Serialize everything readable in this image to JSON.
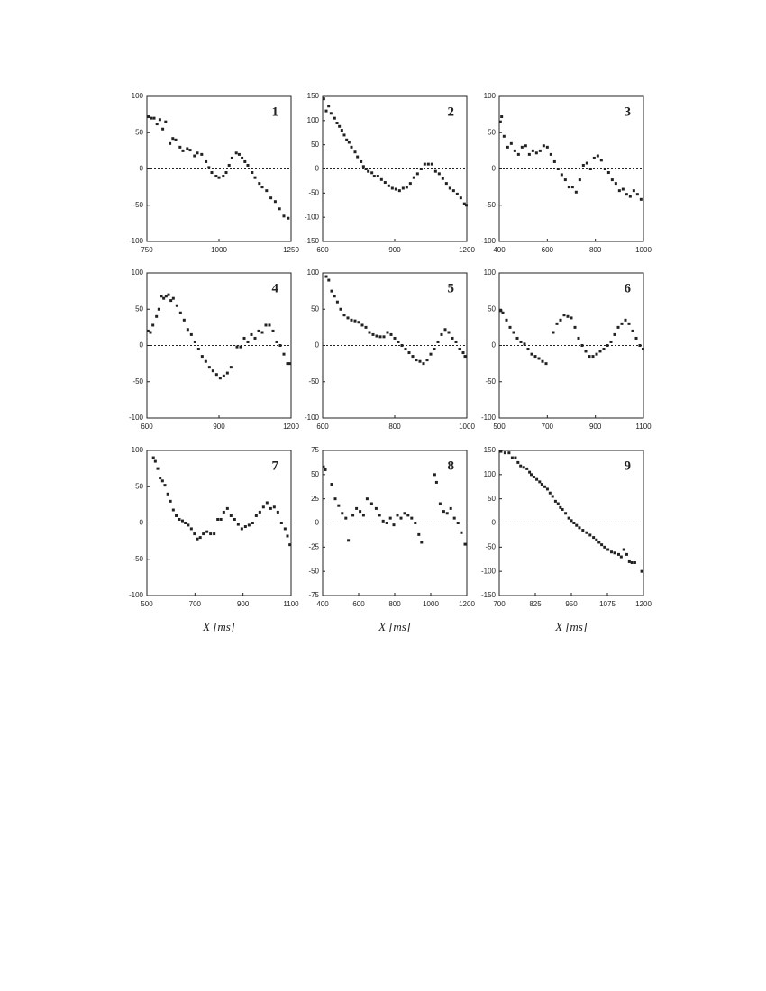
{
  "chart_data": [
    {
      "type": "scatter",
      "label": "1",
      "color": "#222222",
      "zero_line": true,
      "xlim": [
        750,
        1250
      ],
      "xticks": [
        750,
        1000,
        1250
      ],
      "ylim": [
        -100,
        100
      ],
      "yticks": [
        -100,
        -50,
        0,
        50,
        100
      ],
      "x": [
        755,
        765,
        775,
        785,
        795,
        805,
        815,
        830,
        840,
        850,
        865,
        875,
        890,
        900,
        915,
        925,
        940,
        955,
        965,
        975,
        990,
        1000,
        1015,
        1025,
        1035,
        1045,
        1060,
        1070,
        1080,
        1090,
        1100,
        1115,
        1125,
        1140,
        1150,
        1165,
        1180,
        1195,
        1210,
        1225,
        1240
      ],
      "values": [
        72,
        70,
        70,
        62,
        68,
        55,
        65,
        35,
        42,
        40,
        30,
        25,
        28,
        26,
        18,
        22,
        20,
        10,
        2,
        -5,
        -10,
        -12,
        -10,
        -5,
        5,
        15,
        22,
        20,
        15,
        10,
        5,
        -5,
        -12,
        -20,
        -25,
        -30,
        -40,
        -45,
        -55,
        -65,
        -68
      ]
    },
    {
      "type": "scatter",
      "label": "2",
      "color": "#222222",
      "zero_line": true,
      "xlim": [
        600,
        1200
      ],
      "xticks": [
        600,
        900,
        1200
      ],
      "ylim": [
        -150,
        150
      ],
      "yticks": [
        -150,
        -100,
        -50,
        0,
        50,
        100,
        150
      ],
      "x": [
        605,
        615,
        625,
        635,
        650,
        660,
        670,
        680,
        690,
        700,
        710,
        720,
        735,
        745,
        760,
        770,
        780,
        790,
        805,
        815,
        830,
        845,
        860,
        875,
        890,
        905,
        920,
        935,
        950,
        965,
        980,
        995,
        1010,
        1025,
        1040,
        1055,
        1070,
        1085,
        1100,
        1115,
        1130,
        1145,
        1160,
        1175,
        1190,
        1198
      ],
      "values": [
        145,
        120,
        130,
        115,
        105,
        95,
        88,
        80,
        70,
        60,
        55,
        45,
        35,
        25,
        15,
        5,
        0,
        -5,
        -8,
        -15,
        -15,
        -22,
        -28,
        -35,
        -40,
        -42,
        -45,
        -40,
        -38,
        -30,
        -18,
        -10,
        0,
        10,
        10,
        10,
        -5,
        -10,
        -20,
        -30,
        -40,
        -45,
        -52,
        -60,
        -72,
        -75
      ]
    },
    {
      "type": "scatter",
      "label": "3",
      "color": "#222222",
      "zero_line": true,
      "xlim": [
        400,
        1000
      ],
      "xticks": [
        400,
        600,
        800,
        1000
      ],
      "ylim": [
        -100,
        100
      ],
      "yticks": [
        -100,
        -50,
        0,
        50,
        100
      ],
      "x": [
        405,
        410,
        420,
        435,
        450,
        465,
        480,
        495,
        510,
        525,
        540,
        555,
        570,
        585,
        600,
        615,
        630,
        645,
        660,
        675,
        690,
        705,
        720,
        735,
        750,
        765,
        780,
        795,
        810,
        825,
        840,
        855,
        870,
        885,
        900,
        915,
        930,
        945,
        960,
        975,
        990
      ],
      "values": [
        65,
        72,
        45,
        30,
        35,
        25,
        20,
        30,
        32,
        20,
        25,
        22,
        25,
        32,
        30,
        20,
        10,
        0,
        -8,
        -15,
        -25,
        -25,
        -32,
        -15,
        5,
        8,
        0,
        15,
        18,
        12,
        0,
        -5,
        -15,
        -20,
        -30,
        -28,
        -35,
        -38,
        -30,
        -35,
        -42
      ]
    },
    {
      "type": "scatter",
      "label": "4",
      "color": "#222222",
      "zero_line": true,
      "xlim": [
        600,
        1200
      ],
      "xticks": [
        600,
        900,
        1200
      ],
      "ylim": [
        -100,
        100
      ],
      "yticks": [
        -100,
        -50,
        0,
        50,
        100
      ],
      "x": [
        605,
        615,
        625,
        640,
        650,
        660,
        670,
        680,
        690,
        700,
        710,
        725,
        740,
        755,
        770,
        785,
        800,
        815,
        830,
        845,
        860,
        875,
        890,
        905,
        920,
        935,
        950,
        975,
        990,
        1005,
        1020,
        1035,
        1050,
        1065,
        1080,
        1095,
        1110,
        1125,
        1140,
        1155,
        1170,
        1185,
        1195
      ],
      "values": [
        20,
        18,
        28,
        40,
        50,
        68,
        65,
        68,
        70,
        62,
        65,
        55,
        45,
        35,
        22,
        15,
        5,
        -5,
        -15,
        -22,
        -30,
        -35,
        -40,
        -45,
        -42,
        -38,
        -30,
        -2,
        -2,
        10,
        5,
        15,
        10,
        20,
        18,
        28,
        28,
        20,
        5,
        0,
        -12,
        -25,
        -25
      ]
    },
    {
      "type": "scatter",
      "label": "5",
      "color": "#222222",
      "zero_line": true,
      "xlim": [
        600,
        1000
      ],
      "xticks": [
        600,
        800,
        1000
      ],
      "ylim": [
        -100,
        100
      ],
      "yticks": [
        -100,
        -50,
        0,
        50,
        100
      ],
      "x": [
        610,
        617,
        625,
        633,
        641,
        650,
        660,
        670,
        680,
        690,
        700,
        710,
        720,
        730,
        740,
        750,
        760,
        770,
        780,
        790,
        800,
        810,
        820,
        830,
        840,
        850,
        860,
        870,
        880,
        890,
        900,
        910,
        920,
        930,
        940,
        950,
        960,
        970,
        980,
        990,
        995
      ],
      "values": [
        95,
        90,
        75,
        68,
        60,
        50,
        42,
        38,
        35,
        34,
        32,
        28,
        25,
        18,
        15,
        13,
        12,
        12,
        18,
        15,
        10,
        5,
        0,
        -5,
        -10,
        -15,
        -20,
        -22,
        -25,
        -20,
        -12,
        -5,
        5,
        15,
        22,
        18,
        10,
        5,
        -5,
        -10,
        -15
      ]
    },
    {
      "type": "scatter",
      "label": "6",
      "color": "#222222",
      "zero_line": true,
      "xlim": [
        500,
        1100
      ],
      "xticks": [
        500,
        700,
        900,
        1100
      ],
      "ylim": [
        -100,
        100
      ],
      "yticks": [
        -100,
        -50,
        0,
        50,
        100
      ],
      "x": [
        507,
        515,
        530,
        545,
        560,
        575,
        590,
        605,
        620,
        635,
        650,
        665,
        680,
        695,
        725,
        740,
        755,
        770,
        785,
        800,
        815,
        830,
        845,
        860,
        875,
        890,
        905,
        920,
        935,
        950,
        965,
        980,
        995,
        1010,
        1025,
        1040,
        1055,
        1070,
        1085,
        1098
      ],
      "values": [
        48,
        45,
        35,
        25,
        18,
        10,
        5,
        2,
        -5,
        -12,
        -15,
        -18,
        -22,
        -25,
        18,
        30,
        35,
        42,
        40,
        38,
        25,
        10,
        0,
        -8,
        -15,
        -15,
        -12,
        -8,
        -5,
        0,
        5,
        15,
        25,
        30,
        35,
        30,
        20,
        10,
        0,
        -5
      ]
    },
    {
      "type": "scatter",
      "label": "7",
      "xlabel": "X [ms]",
      "color": "#222222",
      "zero_line": true,
      "xlim": [
        500,
        1100
      ],
      "xticks": [
        500,
        700,
        900,
        1100
      ],
      "ylim": [
        -100,
        100
      ],
      "yticks": [
        -100,
        -50,
        0,
        50,
        100
      ],
      "x": [
        527,
        535,
        545,
        555,
        565,
        575,
        587,
        598,
        610,
        622,
        635,
        648,
        660,
        672,
        685,
        698,
        710,
        722,
        735,
        750,
        765,
        780,
        795,
        808,
        820,
        835,
        850,
        865,
        880,
        895,
        910,
        925,
        940,
        955,
        970,
        985,
        1000,
        1015,
        1030,
        1045,
        1060,
        1075,
        1085,
        1095
      ],
      "values": [
        90,
        85,
        75,
        62,
        58,
        52,
        40,
        30,
        18,
        10,
        5,
        3,
        0,
        -3,
        -8,
        -15,
        -22,
        -20,
        -15,
        -12,
        -15,
        -15,
        5,
        5,
        15,
        20,
        10,
        5,
        -2,
        -8,
        -5,
        -3,
        0,
        10,
        15,
        22,
        28,
        20,
        22,
        15,
        0,
        -8,
        -18,
        -30
      ]
    },
    {
      "type": "scatter",
      "label": "8",
      "xlabel": "X [ms]",
      "color": "#222222",
      "zero_line": true,
      "xlim": [
        400,
        1200
      ],
      "xticks": [
        400,
        600,
        800,
        1000,
        1200
      ],
      "ylim": [
        -75,
        75
      ],
      "yticks": [
        -75,
        -50,
        -25,
        0,
        25,
        50,
        75
      ],
      "x": [
        405,
        415,
        450,
        470,
        489,
        509,
        529,
        543,
        568,
        588,
        608,
        627,
        647,
        672,
        697,
        716,
        736,
        756,
        776,
        795,
        815,
        835,
        855,
        874,
        894,
        914,
        934,
        949,
        1022,
        1032,
        1052,
        1072,
        1091,
        1111,
        1131,
        1151,
        1170,
        1190
      ],
      "values": [
        58,
        55,
        40,
        25,
        18,
        10,
        5,
        -18,
        8,
        15,
        12,
        8,
        25,
        20,
        15,
        8,
        2,
        0,
        5,
        -2,
        8,
        5,
        10,
        8,
        5,
        0,
        -12,
        -20,
        50,
        42,
        20,
        12,
        10,
        15,
        5,
        0,
        -10,
        -22
      ]
    },
    {
      "type": "scatter",
      "label": "9",
      "xlabel": "X [ms]",
      "color": "#222222",
      "zero_line": true,
      "xlim": [
        700,
        1200
      ],
      "xticks": [
        700,
        825,
        950,
        1075,
        1200
      ],
      "ylim": [
        -150,
        150
      ],
      "yticks": [
        -150,
        -100,
        -50,
        0,
        50,
        100,
        150
      ],
      "x": [
        706,
        720,
        734,
        745,
        756,
        765,
        774,
        785,
        796,
        805,
        811,
        820,
        830,
        840,
        848,
        858,
        867,
        876,
        885,
        895,
        904,
        912,
        919,
        930,
        941,
        950,
        959,
        968,
        978,
        990,
        1003,
        1015,
        1027,
        1037,
        1046,
        1055,
        1065,
        1077,
        1089,
        1100,
        1114,
        1123,
        1132,
        1142,
        1151,
        1160,
        1170,
        1194
      ],
      "values": [
        148,
        145,
        145,
        135,
        135,
        125,
        118,
        115,
        112,
        105,
        100,
        95,
        90,
        85,
        80,
        75,
        70,
        62,
        55,
        45,
        40,
        32,
        28,
        20,
        10,
        5,
        0,
        -5,
        -10,
        -15,
        -20,
        -25,
        -30,
        -35,
        -40,
        -45,
        -50,
        -55,
        -60,
        -62,
        -65,
        -70,
        -55,
        -65,
        -80,
        -82,
        -82,
        -100
      ]
    }
  ]
}
